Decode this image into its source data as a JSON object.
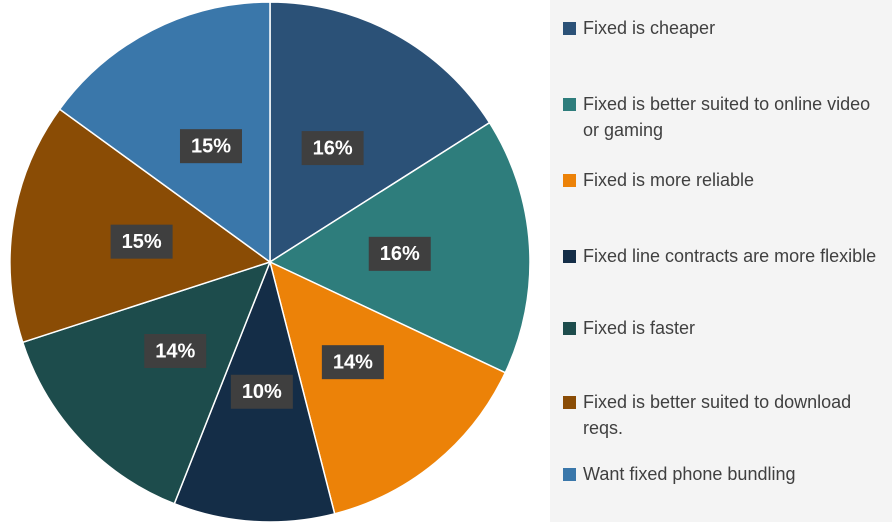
{
  "chart_data": {
    "type": "pie",
    "categories": [
      "Fixed is cheaper",
      "Fixed is better suited to online video or gaming",
      "Fixed is more reliable",
      "Fixed line contracts are more flexible",
      "Fixed is faster",
      "Fixed is better suited to download reqs.",
      "Want fixed phone bundling"
    ],
    "values": [
      16,
      16,
      14,
      10,
      14,
      15,
      15
    ],
    "value_labels": [
      "16%",
      "16%",
      "14%",
      "10%",
      "14%",
      "15%",
      "15%"
    ],
    "colors": [
      "#2b5177",
      "#2e7d7c",
      "#ec8208",
      "#142d47",
      "#1d4c4c",
      "#8a4c05",
      "#3a77aa"
    ],
    "legend": "right"
  }
}
